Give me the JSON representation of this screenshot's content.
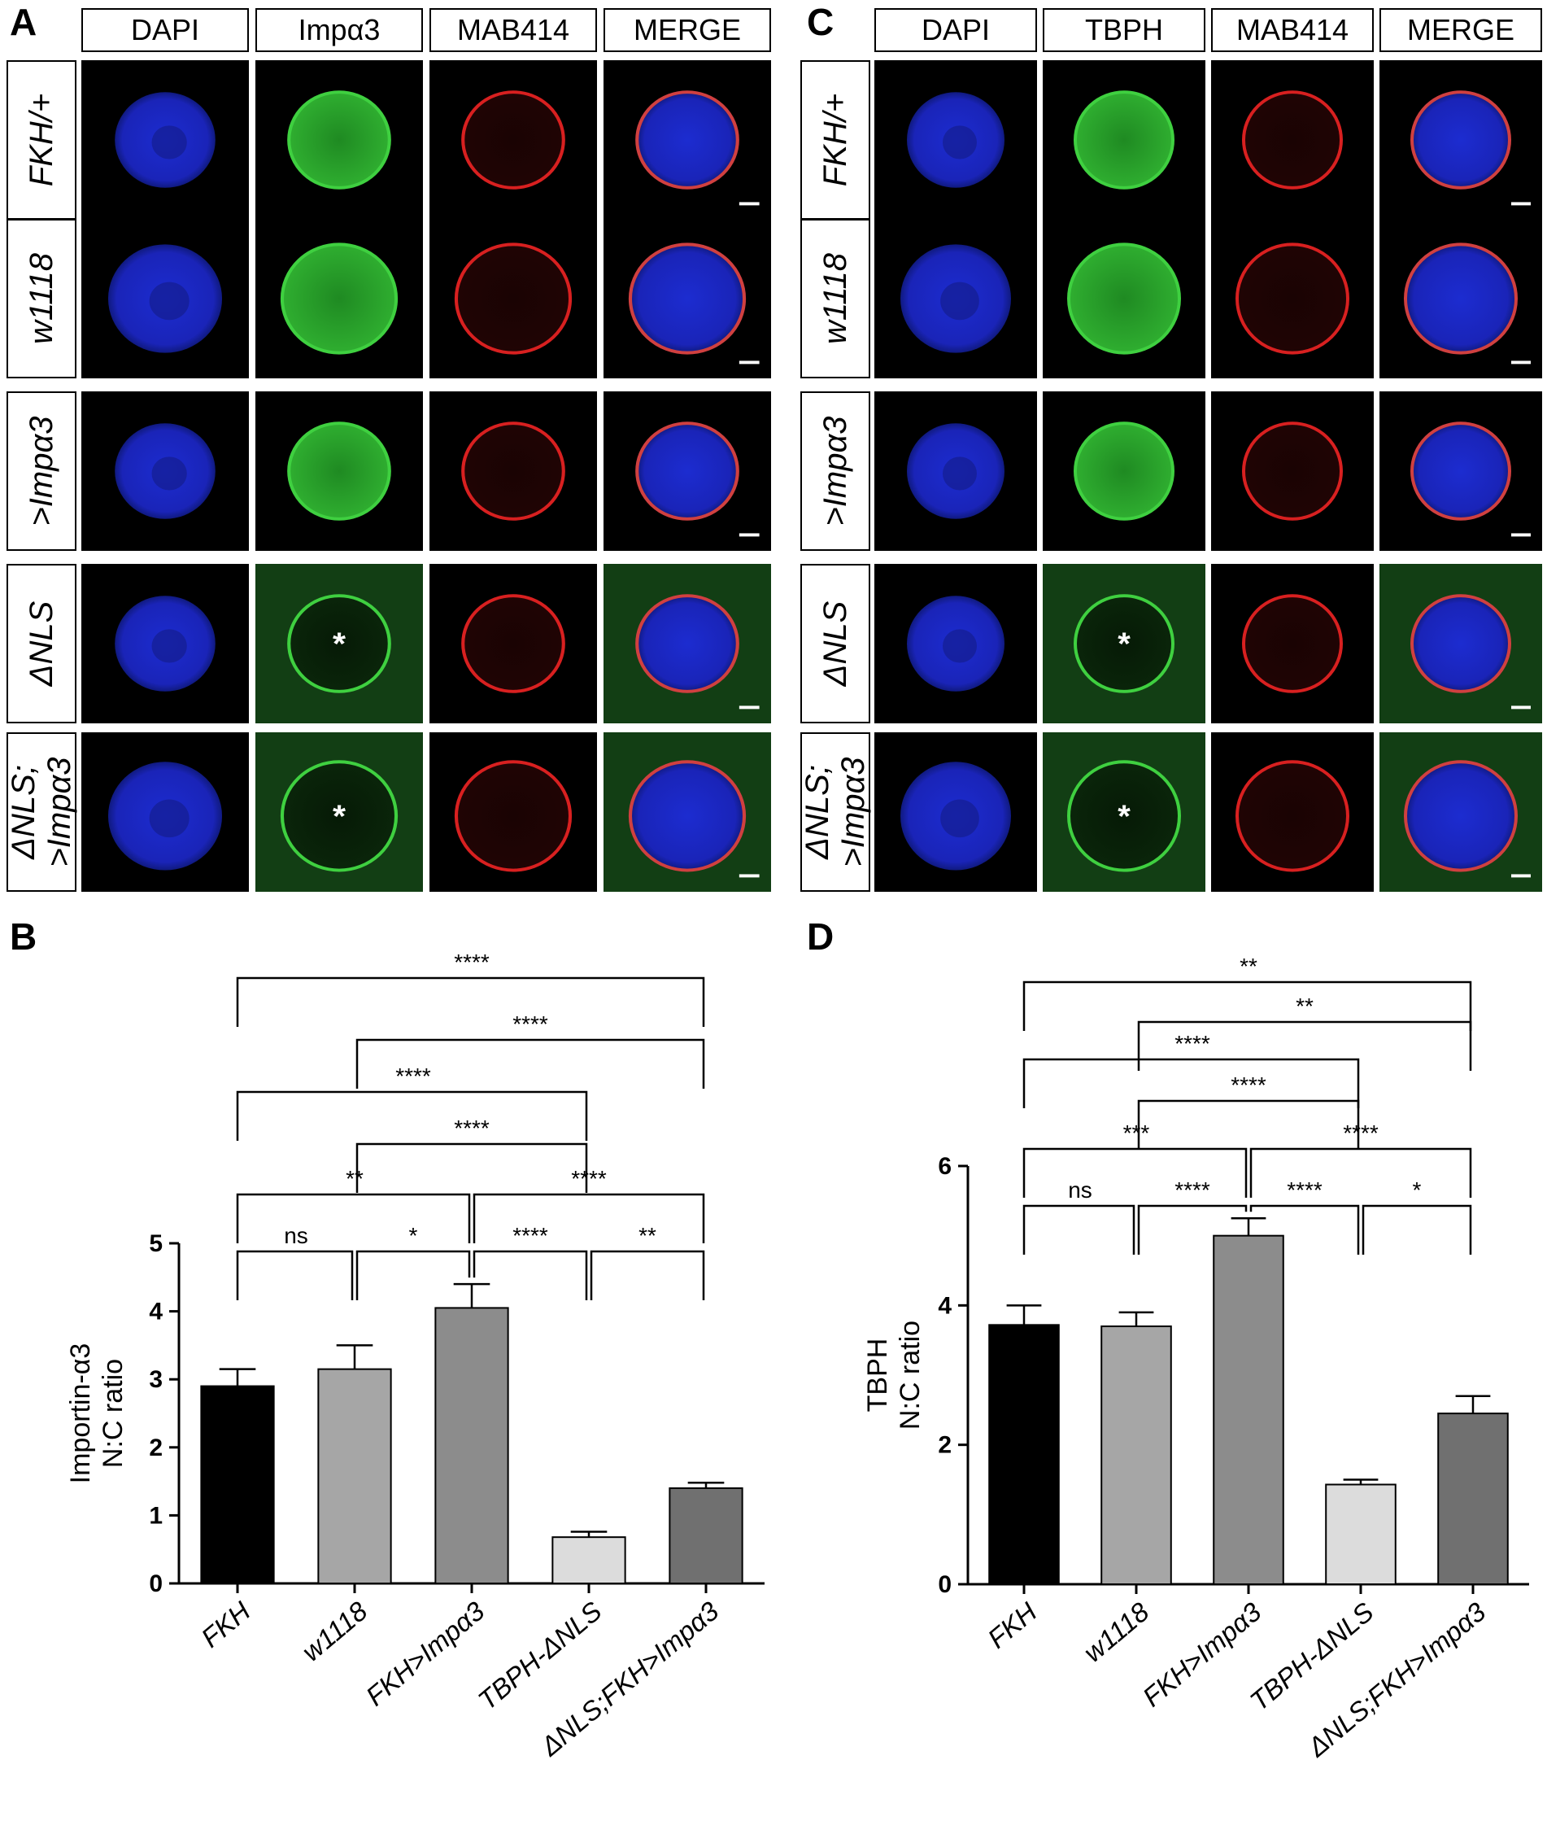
{
  "panels": {
    "A": "A",
    "B": "B",
    "C": "C",
    "D": "D"
  },
  "panelA": {
    "columns": [
      "DAPI",
      "Impα3",
      "MAB414",
      "MERGE"
    ],
    "rows": [
      "FKH/+",
      "w1118",
      ">Impα3",
      "ΔNLS",
      "ΔNLS;\n>Impα3"
    ],
    "asterisk": "*"
  },
  "panelC": {
    "columns": [
      "DAPI",
      "TBPH",
      "MAB414",
      "MERGE"
    ],
    "rows": [
      "FKH/+",
      "w1118",
      ">Impα3",
      "ΔNLS",
      "ΔNLS;\n>Impα3"
    ],
    "asterisk": "*"
  },
  "colors": {
    "blue": "#1a2bd8",
    "green": "#3fd040",
    "red": "#d82020"
  },
  "chart_data": [
    {
      "type": "bar",
      "ylabel": "Importin-α3\nN:C ratio",
      "categories": [
        "FKH",
        "w1118",
        "FKH>Impα3",
        "TBPH-ΔNLS",
        "ΔNLS;FKH>Impα3"
      ],
      "values": [
        2.9,
        3.15,
        4.05,
        0.68,
        1.4
      ],
      "errors": [
        0.25,
        0.35,
        0.35,
        0.08,
        0.08
      ],
      "bar_colors": [
        "#000000",
        "#a6a6a6",
        "#8c8c8c",
        "#dcdcdc",
        "#707070"
      ],
      "ylim": [
        0,
        5
      ],
      "yticks": [
        0,
        1,
        2,
        3,
        4,
        5
      ],
      "comparisons": [
        {
          "a": 0,
          "b": 1,
          "label": "ns"
        },
        {
          "a": 1,
          "b": 2,
          "label": "*"
        },
        {
          "a": 2,
          "b": 3,
          "label": "****"
        },
        {
          "a": 3,
          "b": 4,
          "label": "**"
        },
        {
          "a": 0,
          "b": 2,
          "label": "**"
        },
        {
          "a": 2,
          "b": 4,
          "label": "****"
        },
        {
          "a": 1,
          "b": 3,
          "label": "****"
        },
        {
          "a": 0,
          "b": 3,
          "label": "****"
        },
        {
          "a": 1,
          "b": 4,
          "label": "****"
        },
        {
          "a": 0,
          "b": 4,
          "label": "****"
        }
      ]
    },
    {
      "type": "bar",
      "ylabel": "TBPH\nN:C ratio",
      "categories": [
        "FKH",
        "w1118",
        "FKH>Impα3",
        "TBPH-ΔNLS",
        "ΔNLS;FKH>Impα3"
      ],
      "values": [
        3.72,
        3.7,
        5.0,
        1.43,
        2.45
      ],
      "errors": [
        0.28,
        0.2,
        0.25,
        0.07,
        0.25
      ],
      "bar_colors": [
        "#000000",
        "#a6a6a6",
        "#8c8c8c",
        "#dcdcdc",
        "#707070"
      ],
      "ylim": [
        0,
        6
      ],
      "yticks": [
        0,
        2,
        4,
        6
      ],
      "comparisons": [
        {
          "a": 0,
          "b": 1,
          "label": "ns"
        },
        {
          "a": 1,
          "b": 2,
          "label": "****"
        },
        {
          "a": 2,
          "b": 3,
          "label": "****"
        },
        {
          "a": 3,
          "b": 4,
          "label": "*"
        },
        {
          "a": 0,
          "b": 2,
          "label": "***"
        },
        {
          "a": 2,
          "b": 4,
          "label": "****"
        },
        {
          "a": 1,
          "b": 3,
          "label": "****"
        },
        {
          "a": 0,
          "b": 3,
          "label": "****"
        },
        {
          "a": 1,
          "b": 4,
          "label": "**"
        },
        {
          "a": 0,
          "b": 4,
          "label": "**"
        }
      ]
    }
  ]
}
